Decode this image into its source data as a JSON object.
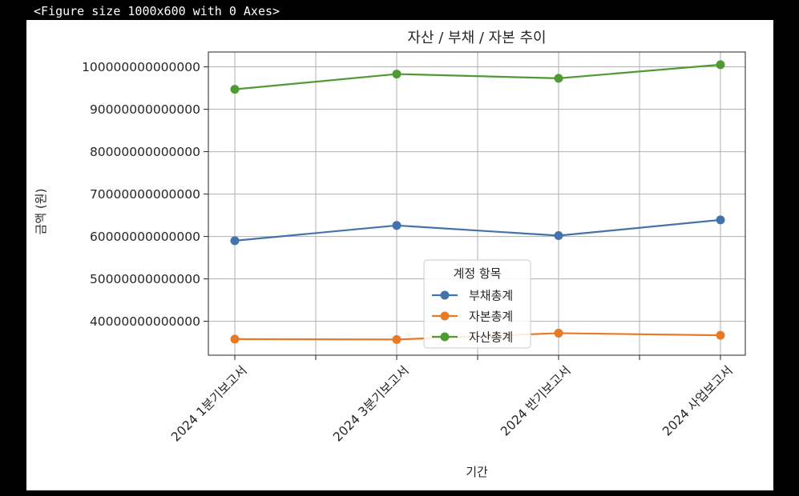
{
  "header": {
    "text": "<Figure size 1000x600 with 0 Axes>"
  },
  "colors": {
    "background": "#000000",
    "figure": "#ffffff",
    "grid": "#b0b0b0",
    "series_liabilities": "#4472ab",
    "series_equity": "#e67a26",
    "series_assets": "#4f9a34"
  },
  "chart_data": {
    "type": "line",
    "title": "자산 / 부채 / 자본 추이",
    "xlabel": "기간",
    "ylabel": "금액 (원)",
    "categories": [
      "2024 1분기보고서",
      "2024 3분기보고서",
      "2024 반기보고서",
      "2024 사업보고서"
    ],
    "ylim": [
      32000000000000,
      103500000000000
    ],
    "yticks": [
      40000000000000,
      50000000000000,
      60000000000000,
      70000000000000,
      80000000000000,
      90000000000000,
      100000000000000
    ],
    "ytick_labels": [
      "40000000000000",
      "50000000000000",
      "60000000000000",
      "70000000000000",
      "80000000000000",
      "90000000000000",
      "100000000000000"
    ],
    "grid": true,
    "legend": {
      "title": "계정 항목",
      "placement": "lower-center"
    },
    "series": [
      {
        "name": "부채총계",
        "color": "#4472ab",
        "values": [
          59000000000000,
          62600000000000,
          60200000000000,
          63900000000000
        ]
      },
      {
        "name": "자본총계",
        "color": "#e67a26",
        "values": [
          35800000000000,
          35700000000000,
          37200000000000,
          36700000000000
        ]
      },
      {
        "name": "자산총계",
        "color": "#4f9a34",
        "values": [
          94700000000000,
          98300000000000,
          97300000000000,
          100500000000000
        ]
      }
    ]
  }
}
